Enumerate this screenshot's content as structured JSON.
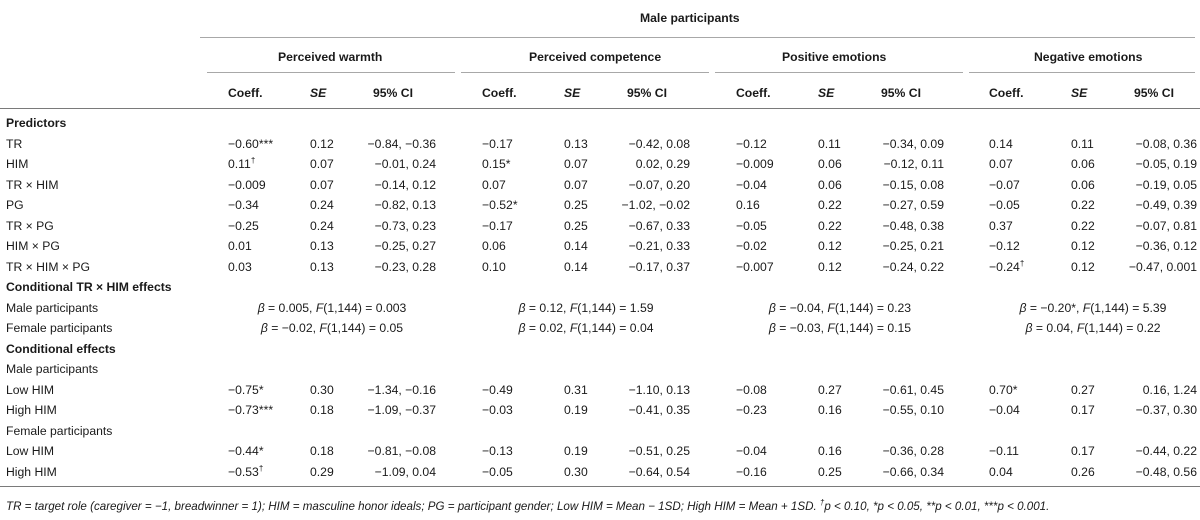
{
  "title": "Male participants",
  "groups": [
    "Perceived warmth",
    "Perceived competence",
    "Positive emotions",
    "Negative emotions"
  ],
  "subheaders": [
    "Coeff.",
    "SE",
    "95% CI"
  ],
  "sections": {
    "predictors": "Predictors",
    "conditional_tr_him": "Conditional TR × HIM effects",
    "conditional_effects": "Conditional effects",
    "male_participants": "Male participants",
    "female_participants": "Female participants"
  },
  "predictor_rows": [
    {
      "label": "TR",
      "cells": [
        [
          "−0.60",
          "***",
          "0.12",
          "−0.84, −0.36"
        ],
        [
          "−0.17",
          "",
          "0.13",
          "−0.42, 0.08"
        ],
        [
          "−0.12",
          "",
          "0.11",
          "−0.34, 0.09"
        ],
        [
          "0.14",
          "",
          "0.11",
          "−0.08, 0.36"
        ]
      ]
    },
    {
      "label": "HIM",
      "cells": [
        [
          "0.11",
          "†",
          "0.07",
          "−0.01, 0.24"
        ],
        [
          "0.15",
          "*",
          "0.07",
          "0.02, 0.29"
        ],
        [
          "−0.009",
          "",
          "0.06",
          "−0.12, 0.11"
        ],
        [
          "0.07",
          "",
          "0.06",
          "−0.05, 0.19"
        ]
      ]
    },
    {
      "label": "TR × HIM",
      "cells": [
        [
          "−0.009",
          "",
          "0.07",
          "−0.14, 0.12"
        ],
        [
          "0.07",
          "",
          "0.07",
          "−0.07, 0.20"
        ],
        [
          "−0.04",
          "",
          "0.06",
          "−0.15, 0.08"
        ],
        [
          "−0.07",
          "",
          "0.06",
          "−0.19, 0.05"
        ]
      ]
    },
    {
      "label": "PG",
      "cells": [
        [
          "−0.34",
          "",
          "0.24",
          "−0.82, 0.13"
        ],
        [
          "−0.52",
          "*",
          "0.25",
          "−1.02, −0.02"
        ],
        [
          "0.16",
          "",
          "0.22",
          "−0.27, 0.59"
        ],
        [
          "−0.05",
          "",
          "0.22",
          "−0.49, 0.39"
        ]
      ]
    },
    {
      "label": "TR × PG",
      "cells": [
        [
          "−0.25",
          "",
          "0.24",
          "−0.73, 0.23"
        ],
        [
          "−0.17",
          "",
          "0.25",
          "−0.67, 0.33"
        ],
        [
          "−0.05",
          "",
          "0.22",
          "−0.48, 0.38"
        ],
        [
          "0.37",
          "",
          "0.22",
          "−0.07, 0.81"
        ]
      ]
    },
    {
      "label": "HIM × PG",
      "cells": [
        [
          "0.01",
          "",
          "0.13",
          "−0.25, 0.27"
        ],
        [
          "0.06",
          "",
          "0.14",
          "−0.21, 0.33"
        ],
        [
          "−0.02",
          "",
          "0.12",
          "−0.25, 0.21"
        ],
        [
          "−0.12",
          "",
          "0.12",
          "−0.36, 0.12"
        ]
      ]
    },
    {
      "label": "TR × HIM × PG",
      "cells": [
        [
          "0.03",
          "",
          "0.13",
          "−0.23, 0.28"
        ],
        [
          "0.10",
          "",
          "0.14",
          "−0.17, 0.37"
        ],
        [
          "−0.007",
          "",
          "0.12",
          "−0.24, 0.22"
        ],
        [
          "−0.24",
          "†",
          "0.12",
          "−0.47, 0.001"
        ]
      ]
    }
  ],
  "conditional_rows": [
    {
      "label": "Male participants",
      "cells": [
        {
          "beta": "β",
          "b_val": " = 0.005, ",
          "f": "F",
          "f_val": "(1,144) = 0.003",
          "sig": ""
        },
        {
          "beta": "β",
          "b_val": " = 0.12, ",
          "f": "F",
          "f_val": "(1,144) = 1.59",
          "sig": ""
        },
        {
          "beta": "β",
          "b_val": " = −0.04, ",
          "f": "F",
          "f_val": "(1,144) = 0.23",
          "sig": ""
        },
        {
          "beta": "β",
          "b_val": " = −0.20",
          "sig": "*",
          "b_sep": ", ",
          "f": "F",
          "f_val": "(1,144) = 5.39"
        }
      ]
    },
    {
      "label": "Female participants",
      "cells": [
        {
          "beta": "β",
          "b_val": " = −0.02, ",
          "f": "F",
          "f_val": "(1,144) = 0.05",
          "sig": ""
        },
        {
          "beta": "β",
          "b_val": " = 0.02, ",
          "f": "F",
          "f_val": "(1,144) = 0.04",
          "sig": ""
        },
        {
          "beta": "β",
          "b_val": " = −0.03, ",
          "f": "F",
          "f_val": "(1,144) = 0.15",
          "sig": ""
        },
        {
          "beta": "β",
          "b_val": " = 0.04, ",
          "f": "F",
          "f_val": "(1,144) = 0.22",
          "sig": ""
        }
      ]
    }
  ],
  "effect_rows_male": [
    {
      "label": "Low HIM",
      "cells": [
        [
          "−0.75",
          "*",
          "0.30",
          "−1.34, −0.16"
        ],
        [
          "−0.49",
          "",
          "0.31",
          "−1.10, 0.13"
        ],
        [
          "−0.08",
          "",
          "0.27",
          "−0.61, 0.45"
        ],
        [
          "0.70",
          "*",
          "0.27",
          "0.16, 1.24"
        ]
      ]
    },
    {
      "label": "High HIM",
      "cells": [
        [
          "−0.73",
          "***",
          "0.18",
          "−1.09, −0.37"
        ],
        [
          "−0.03",
          "",
          "0.19",
          "−0.41, 0.35"
        ],
        [
          "−0.23",
          "",
          "0.16",
          "−0.55, 0.10"
        ],
        [
          "−0.04",
          "",
          "0.17",
          "−0.37, 0.30"
        ]
      ]
    }
  ],
  "effect_rows_female": [
    {
      "label": "Low HIM",
      "cells": [
        [
          "−0.44",
          "*",
          "0.18",
          "−0.81, −0.08"
        ],
        [
          "−0.13",
          "",
          "0.19",
          "−0.51, 0.25"
        ],
        [
          "−0.04",
          "",
          "0.16",
          "−0.36, 0.28"
        ],
        [
          "−0.11",
          "",
          "0.17",
          "−0.44, 0.22"
        ]
      ]
    },
    {
      "label": "High HIM",
      "cells": [
        [
          "−0.53",
          "†",
          "0.29",
          "−1.09, 0.04"
        ],
        [
          "−0.05",
          "",
          "0.30",
          "−0.64, 0.54"
        ],
        [
          "−0.16",
          "",
          "0.25",
          "−0.66, 0.34"
        ],
        [
          "0.04",
          "",
          "0.26",
          "−0.48, 0.56"
        ]
      ]
    }
  ],
  "footnote": {
    "main": "TR = target role (caregiver = −1, breadwinner = 1); HIM = masculine honor ideals; PG = participant gender; Low HIM = Mean − 1SD; High HIM = Mean + 1SD. ",
    "dagger": "†",
    "p1": "p < 0.10, *",
    "p2": "p < 0.05, **",
    "p3": "p < 0.01, ***",
    "p4": "p < 0.001."
  }
}
